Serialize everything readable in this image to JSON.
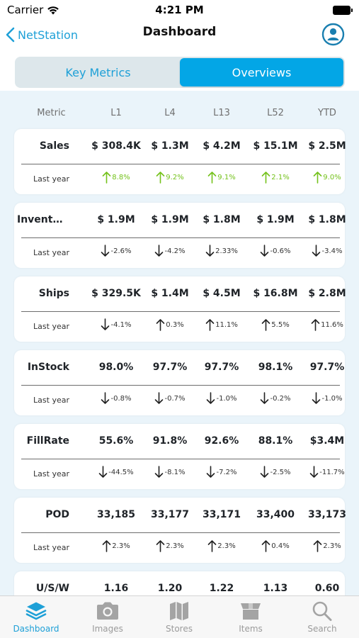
{
  "status_bar": {
    "carrier": "Carrier",
    "time": "4:21 PM"
  },
  "nav": {
    "back_label": "NetStation",
    "title": "Dashboard"
  },
  "segments": [
    {
      "label": "Key Metrics",
      "active": false
    },
    {
      "label": "Overviews",
      "active": true
    }
  ],
  "columns": {
    "metric": "Metric",
    "periods": [
      "L1",
      "L4",
      "L13",
      "L52",
      "YTD"
    ]
  },
  "last_year_label": "Last year",
  "metrics": [
    {
      "name": "Sales",
      "values": [
        "$ 308.4K",
        "$ 1.3M",
        "$ 4.2M",
        "$ 15.1M",
        "$ 2.5M"
      ],
      "changes": [
        {
          "dir": "up",
          "color": "green",
          "text": "8.8%"
        },
        {
          "dir": "up",
          "color": "green",
          "text": "9.2%"
        },
        {
          "dir": "up",
          "color": "green",
          "text": "9.1%"
        },
        {
          "dir": "up",
          "color": "green",
          "text": "2.1%"
        },
        {
          "dir": "up",
          "color": "green",
          "text": "9.0%"
        }
      ]
    },
    {
      "name": "Invento...",
      "values": [
        "$ 1.9M",
        "$ 1.9M",
        "$ 1.8M",
        "$ 1.9M",
        "$ 1.8M"
      ],
      "changes": [
        {
          "dir": "down",
          "color": "dark",
          "text": "-2.6%"
        },
        {
          "dir": "down",
          "color": "dark",
          "text": "-4.2%"
        },
        {
          "dir": "down",
          "color": "dark",
          "text": "2.33%"
        },
        {
          "dir": "down",
          "color": "dark",
          "text": "-0.6%"
        },
        {
          "dir": "down",
          "color": "dark",
          "text": "-3.4%"
        }
      ]
    },
    {
      "name": "Ships",
      "values": [
        "$ 329.5K",
        "$ 1.4M",
        "$ 4.5M",
        "$ 16.8M",
        "$ 2.8M"
      ],
      "changes": [
        {
          "dir": "down",
          "color": "dark",
          "text": "-4.1%"
        },
        {
          "dir": "up",
          "color": "dark",
          "text": "0.3%"
        },
        {
          "dir": "up",
          "color": "dark",
          "text": "11.1%"
        },
        {
          "dir": "up",
          "color": "dark",
          "text": "5.5%"
        },
        {
          "dir": "up",
          "color": "dark",
          "text": "11.6%"
        }
      ]
    },
    {
      "name": "InStock",
      "values": [
        "98.0%",
        "97.7%",
        "97.7%",
        "98.1%",
        "97.7%"
      ],
      "changes": [
        {
          "dir": "down",
          "color": "dark",
          "text": "-0.8%"
        },
        {
          "dir": "down",
          "color": "dark",
          "text": "-0.7%"
        },
        {
          "dir": "down",
          "color": "dark",
          "text": "-1.0%"
        },
        {
          "dir": "down",
          "color": "dark",
          "text": "-0.2%"
        },
        {
          "dir": "down",
          "color": "dark",
          "text": "-1.0%"
        }
      ]
    },
    {
      "name": "FillRate",
      "values": [
        "55.6%",
        "91.8%",
        "92.6%",
        "88.1%",
        "$3.4M"
      ],
      "changes": [
        {
          "dir": "down",
          "color": "dark",
          "text": "-44.5%"
        },
        {
          "dir": "down",
          "color": "dark",
          "text": "-8.1%"
        },
        {
          "dir": "down",
          "color": "dark",
          "text": "-7.2%"
        },
        {
          "dir": "down",
          "color": "dark",
          "text": "-2.5%"
        },
        {
          "dir": "down",
          "color": "dark",
          "text": "-11.7%"
        }
      ]
    },
    {
      "name": "POD",
      "values": [
        "33,185",
        "33,177",
        "33,171",
        "33,400",
        "33,173"
      ],
      "changes": [
        {
          "dir": "up",
          "color": "dark",
          "text": "2.3%"
        },
        {
          "dir": "up",
          "color": "dark",
          "text": "2.3%"
        },
        {
          "dir": "up",
          "color": "dark",
          "text": "2.3%"
        },
        {
          "dir": "up",
          "color": "dark",
          "text": "0.4%"
        },
        {
          "dir": "up",
          "color": "dark",
          "text": "2.3%"
        }
      ]
    },
    {
      "name": "U/S/W",
      "values": [
        "1.16",
        "1.20",
        "1.22",
        "1.13",
        "0.60"
      ],
      "changes": []
    }
  ],
  "tabs": [
    {
      "label": "Dashboard",
      "icon": "layers-icon",
      "active": true
    },
    {
      "label": "Images",
      "icon": "camera-icon",
      "active": false
    },
    {
      "label": "Stores",
      "icon": "map-icon",
      "active": false
    },
    {
      "label": "Items",
      "icon": "box-icon",
      "active": false
    },
    {
      "label": "Search",
      "icon": "search-icon",
      "active": false
    }
  ],
  "colors": {
    "accent": "#1ea0d7",
    "segment_active": "#03a6e6",
    "positive": "#74c21b",
    "content_bg": "#eaf4fa"
  }
}
